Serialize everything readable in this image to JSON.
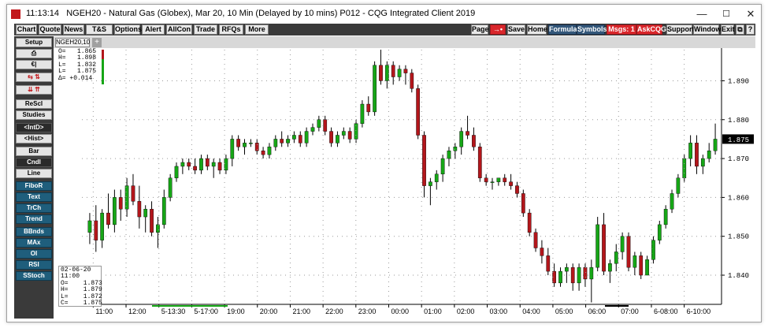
{
  "window": {
    "time": "11:13:14",
    "title": "NGEH20 - Natural Gas (Globex), Mar 20, 10 Min (Delayed by 10 mins)   P012 - CQG Integrated Client 2019",
    "min": "—",
    "max": "☐",
    "close": "✕"
  },
  "menu_left": [
    "Chart",
    "Quote",
    "News",
    "T&S",
    "Options",
    "Alert",
    "AllCon",
    "Trade",
    "RFQs",
    "More"
  ],
  "menu_right": {
    "page": "Page",
    "arrows": "→•",
    "save": "Save",
    "home": "Home",
    "formula": "Formula",
    "symbols": "Symbols",
    "msgs": "Msgs: 1",
    "askcqg": "AskCQG",
    "support": "Support",
    "window": "Window",
    "exit": "Exit",
    "icon1": "⧉",
    "help": "?"
  },
  "left_panel": [
    "Setup",
    "⎙",
    "€|",
    "⇆ ⇅",
    "⇊ ⇈",
    "ReScl",
    "Studies",
    "<IntD>",
    "<Hist>",
    "Bar",
    "Cndl",
    "Line",
    "FiboR",
    "Text",
    "TrCh",
    "Trend",
    "BBnds",
    "MAx",
    "OI",
    "RSI",
    "SStoch"
  ],
  "tab": {
    "label": "NGEH20,10",
    "add": "+"
  },
  "info_top": {
    "o": "O=   1.865",
    "h": "H=   1.898",
    "l": "L=   1.832",
    "last": "L=   1.875",
    "d": "Δ= +0.014"
  },
  "info_bottom": {
    "date": "02-06-20",
    "time": "11:00",
    "o": "O=    1.873",
    "h": "H=    1.879",
    "l": "L=    1.872",
    "c": "C=    1.875"
  },
  "colors": {
    "up": "#16a616",
    "down": "#b3161b",
    "menu_bg": "#3a3a3a",
    "teal": "#1f5e7c"
  },
  "chart_data": {
    "type": "candlestick",
    "y_ticks": [
      "1.890",
      "1.880",
      "1.870",
      "1.860",
      "1.850",
      "1.840"
    ],
    "y_values": [
      1.89,
      1.88,
      1.87,
      1.86,
      1.85,
      1.84
    ],
    "ylim": [
      1.8325,
      1.898
    ],
    "last_price": "1.875",
    "x_labels": [
      "11:00",
      "12:00",
      "5-13:30",
      "5-17:00",
      "19:00",
      "20:00",
      "21:00",
      "22:00",
      "23:00",
      "00:00",
      "01:00",
      "02:00",
      "03:00",
      "04:00",
      "05:00",
      "06:00",
      "07:00",
      "6-08:00",
      "6-10:00"
    ],
    "candles": [
      [
        1.851,
        1.856,
        1.848,
        1.854
      ],
      [
        1.854,
        1.858,
        1.846,
        1.849
      ],
      [
        1.849,
        1.857,
        1.847,
        1.856
      ],
      [
        1.856,
        1.861,
        1.852,
        1.853
      ],
      [
        1.853,
        1.862,
        1.851,
        1.86
      ],
      [
        1.86,
        1.862,
        1.854,
        1.857
      ],
      [
        1.857,
        1.865,
        1.855,
        1.863
      ],
      [
        1.863,
        1.866,
        1.858,
        1.859
      ],
      [
        1.859,
        1.863,
        1.852,
        1.855
      ],
      [
        1.855,
        1.858,
        1.851,
        1.857
      ],
      [
        1.857,
        1.859,
        1.85,
        1.851
      ],
      [
        1.851,
        1.855,
        1.847,
        1.853
      ],
      [
        1.853,
        1.862,
        1.852,
        1.86
      ],
      [
        1.86,
        1.866,
        1.859,
        1.865
      ],
      [
        1.865,
        1.869,
        1.864,
        1.868
      ],
      [
        1.868,
        1.87,
        1.866,
        1.869
      ],
      [
        1.869,
        1.87,
        1.867,
        1.868
      ],
      [
        1.868,
        1.87,
        1.866,
        1.867
      ],
      [
        1.867,
        1.871,
        1.866,
        1.87
      ],
      [
        1.87,
        1.871,
        1.867,
        1.868
      ],
      [
        1.868,
        1.87,
        1.865,
        1.869
      ],
      [
        1.869,
        1.87,
        1.866,
        1.867
      ],
      [
        1.867,
        1.871,
        1.866,
        1.87
      ],
      [
        1.87,
        1.876,
        1.868,
        1.875
      ],
      [
        1.875,
        1.876,
        1.872,
        1.873
      ],
      [
        1.873,
        1.875,
        1.871,
        1.874
      ],
      [
        1.874,
        1.875,
        1.873,
        1.874
      ],
      [
        1.874,
        1.875,
        1.871,
        1.872
      ],
      [
        1.872,
        1.873,
        1.87,
        1.871
      ],
      [
        1.871,
        1.874,
        1.87,
        1.873
      ],
      [
        1.873,
        1.876,
        1.872,
        1.875
      ],
      [
        1.875,
        1.877,
        1.873,
        1.874
      ],
      [
        1.874,
        1.876,
        1.873,
        1.875
      ],
      [
        1.875,
        1.877,
        1.874,
        1.876
      ],
      [
        1.876,
        1.877,
        1.873,
        1.874
      ],
      [
        1.874,
        1.878,
        1.873,
        1.877
      ],
      [
        1.877,
        1.879,
        1.876,
        1.878
      ],
      [
        1.878,
        1.881,
        1.877,
        1.88
      ],
      [
        1.88,
        1.881,
        1.876,
        1.877
      ],
      [
        1.877,
        1.878,
        1.873,
        1.874
      ],
      [
        1.874,
        1.877,
        1.873,
        1.876
      ],
      [
        1.876,
        1.878,
        1.875,
        1.877
      ],
      [
        1.877,
        1.878,
        1.874,
        1.875
      ],
      [
        1.875,
        1.88,
        1.874,
        1.879
      ],
      [
        1.879,
        1.885,
        1.878,
        1.884
      ],
      [
        1.884,
        1.886,
        1.881,
        1.882
      ],
      [
        1.882,
        1.895,
        1.881,
        1.894
      ],
      [
        1.894,
        1.898,
        1.889,
        1.89
      ],
      [
        1.89,
        1.895,
        1.888,
        1.894
      ],
      [
        1.894,
        1.895,
        1.889,
        1.891
      ],
      [
        1.891,
        1.894,
        1.89,
        1.893
      ],
      [
        1.893,
        1.894,
        1.889,
        1.892
      ],
      [
        1.892,
        1.893,
        1.887,
        1.888
      ],
      [
        1.888,
        1.889,
        1.875,
        1.876
      ],
      [
        1.876,
        1.877,
        1.86,
        1.863
      ],
      [
        1.863,
        1.865,
        1.858,
        1.864
      ],
      [
        1.864,
        1.867,
        1.862,
        1.866
      ],
      [
        1.866,
        1.871,
        1.864,
        1.87
      ],
      [
        1.87,
        1.873,
        1.868,
        1.872
      ],
      [
        1.872,
        1.874,
        1.87,
        1.873
      ],
      [
        1.873,
        1.878,
        1.871,
        1.877
      ],
      [
        1.877,
        1.881,
        1.875,
        1.876
      ],
      [
        1.876,
        1.878,
        1.872,
        1.873
      ],
      [
        1.873,
        1.874,
        1.864,
        1.865
      ],
      [
        1.865,
        1.866,
        1.863,
        1.864
      ],
      [
        1.864,
        1.865,
        1.862,
        1.864
      ],
      [
        1.864,
        1.865,
        1.863,
        1.865
      ],
      [
        1.865,
        1.866,
        1.863,
        1.864
      ],
      [
        1.864,
        1.866,
        1.862,
        1.863
      ],
      [
        1.863,
        1.864,
        1.86,
        1.861
      ],
      [
        1.861,
        1.862,
        1.855,
        1.856
      ],
      [
        1.856,
        1.857,
        1.85,
        1.851
      ],
      [
        1.851,
        1.852,
        1.846,
        1.847
      ],
      [
        1.847,
        1.849,
        1.843,
        1.845
      ],
      [
        1.845,
        1.847,
        1.84,
        1.841
      ],
      [
        1.841,
        1.843,
        1.837,
        1.838
      ],
      [
        1.838,
        1.842,
        1.837,
        1.841
      ],
      [
        1.841,
        1.843,
        1.838,
        1.842
      ],
      [
        1.842,
        1.843,
        1.836,
        1.838
      ],
      [
        1.838,
        1.843,
        1.836,
        1.842
      ],
      [
        1.842,
        1.843,
        1.837,
        1.839
      ],
      [
        1.839,
        1.844,
        1.833,
        1.842
      ],
      [
        1.842,
        1.855,
        1.841,
        1.853
      ],
      [
        1.853,
        1.856,
        1.84,
        1.841
      ],
      [
        1.841,
        1.844,
        1.838,
        1.843
      ],
      [
        1.843,
        1.848,
        1.841,
        1.846
      ],
      [
        1.846,
        1.851,
        1.844,
        1.85
      ],
      [
        1.85,
        1.851,
        1.841,
        1.842
      ],
      [
        1.842,
        1.846,
        1.84,
        1.845
      ],
      [
        1.845,
        1.846,
        1.839,
        1.84
      ],
      [
        1.84,
        1.845,
        1.84,
        1.844
      ],
      [
        1.844,
        1.85,
        1.843,
        1.849
      ],
      [
        1.849,
        1.854,
        1.848,
        1.853
      ],
      [
        1.853,
        1.858,
        1.852,
        1.857
      ],
      [
        1.857,
        1.862,
        1.856,
        1.861
      ],
      [
        1.861,
        1.866,
        1.86,
        1.865
      ],
      [
        1.865,
        1.871,
        1.864,
        1.87
      ],
      [
        1.87,
        1.876,
        1.868,
        1.874
      ],
      [
        1.874,
        1.876,
        1.866,
        1.868
      ],
      [
        1.868,
        1.871,
        1.866,
        1.87
      ],
      [
        1.87,
        1.874,
        1.869,
        1.872
      ],
      [
        1.872,
        1.879,
        1.871,
        1.875
      ]
    ]
  }
}
